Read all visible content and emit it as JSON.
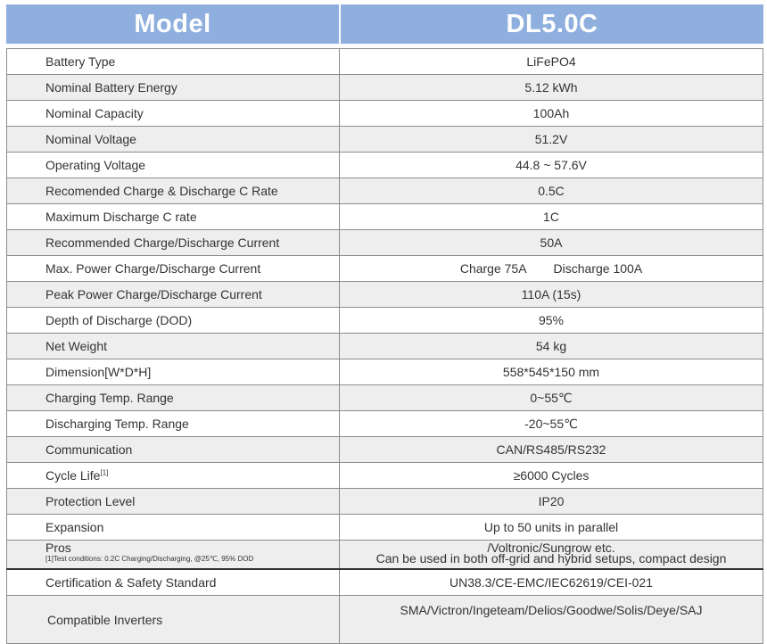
{
  "header": {
    "col1": "Model",
    "col2": "DL5.0C"
  },
  "rows": [
    {
      "label": "Battery Type",
      "value": "LiFePO4"
    },
    {
      "label": "Nominal Battery Energy",
      "value": "5.12 kWh"
    },
    {
      "label": "Nominal Capacity",
      "value": "100Ah"
    },
    {
      "label": "Nominal Voltage",
      "value": "51.2V"
    },
    {
      "label": "Operating Voltage",
      "value": "44.8 ~ 57.6V"
    },
    {
      "label": "Recomended Charge & Discharge C Rate",
      "value": "0.5C"
    },
    {
      "label": "Maximum Discharge C rate",
      "value": "1C"
    },
    {
      "label": "Recommended Charge/Discharge Current",
      "value": "50A"
    },
    {
      "label": "Max. Power Charge/Discharge Current",
      "value_charge": "Charge 75A",
      "value_discharge": "Discharge 100A"
    },
    {
      "label": "Peak Power Charge/Discharge Current",
      "value": "110A (15s)"
    },
    {
      "label": "Depth of Discharge (DOD)",
      "value": "95%"
    },
    {
      "label": "Net Weight",
      "value": "54 kg"
    },
    {
      "label": "Dimension[W*D*H]",
      "value": "558*545*150 mm"
    },
    {
      "label": "Charging Temp. Range",
      "value": "0~55℃"
    },
    {
      "label": "Discharging Temp. Range",
      "value": "-20~55℃"
    },
    {
      "label": "Communication",
      "value": "CAN/RS485/RS232"
    },
    {
      "label": "Cycle Life",
      "label_sup": "[1]",
      "value": "≥6000 Cycles"
    },
    {
      "label": "Protection Level",
      "value": "IP20"
    },
    {
      "label": "Expansion",
      "value": "Up to 50 units in parallel"
    },
    {
      "label": "Pros",
      "note": "[1]Test conditions: 0.2C Charging/Discharging, @25℃, 95% DOD",
      "value_line1": "/Voltronic/Sungrow etc.",
      "value_line2": "Can be used in both off-grid and hybrid setups, compact design"
    },
    {
      "label": "Certification & Safety Standard",
      "value": "UN38.3/CE-EMC/IEC62619/CEI-021"
    },
    {
      "label": "Compatible Inverters",
      "value": "SMA/Victron/Ingeteam/Delios/Goodwe/Solis/Deye/SAJ"
    }
  ]
}
